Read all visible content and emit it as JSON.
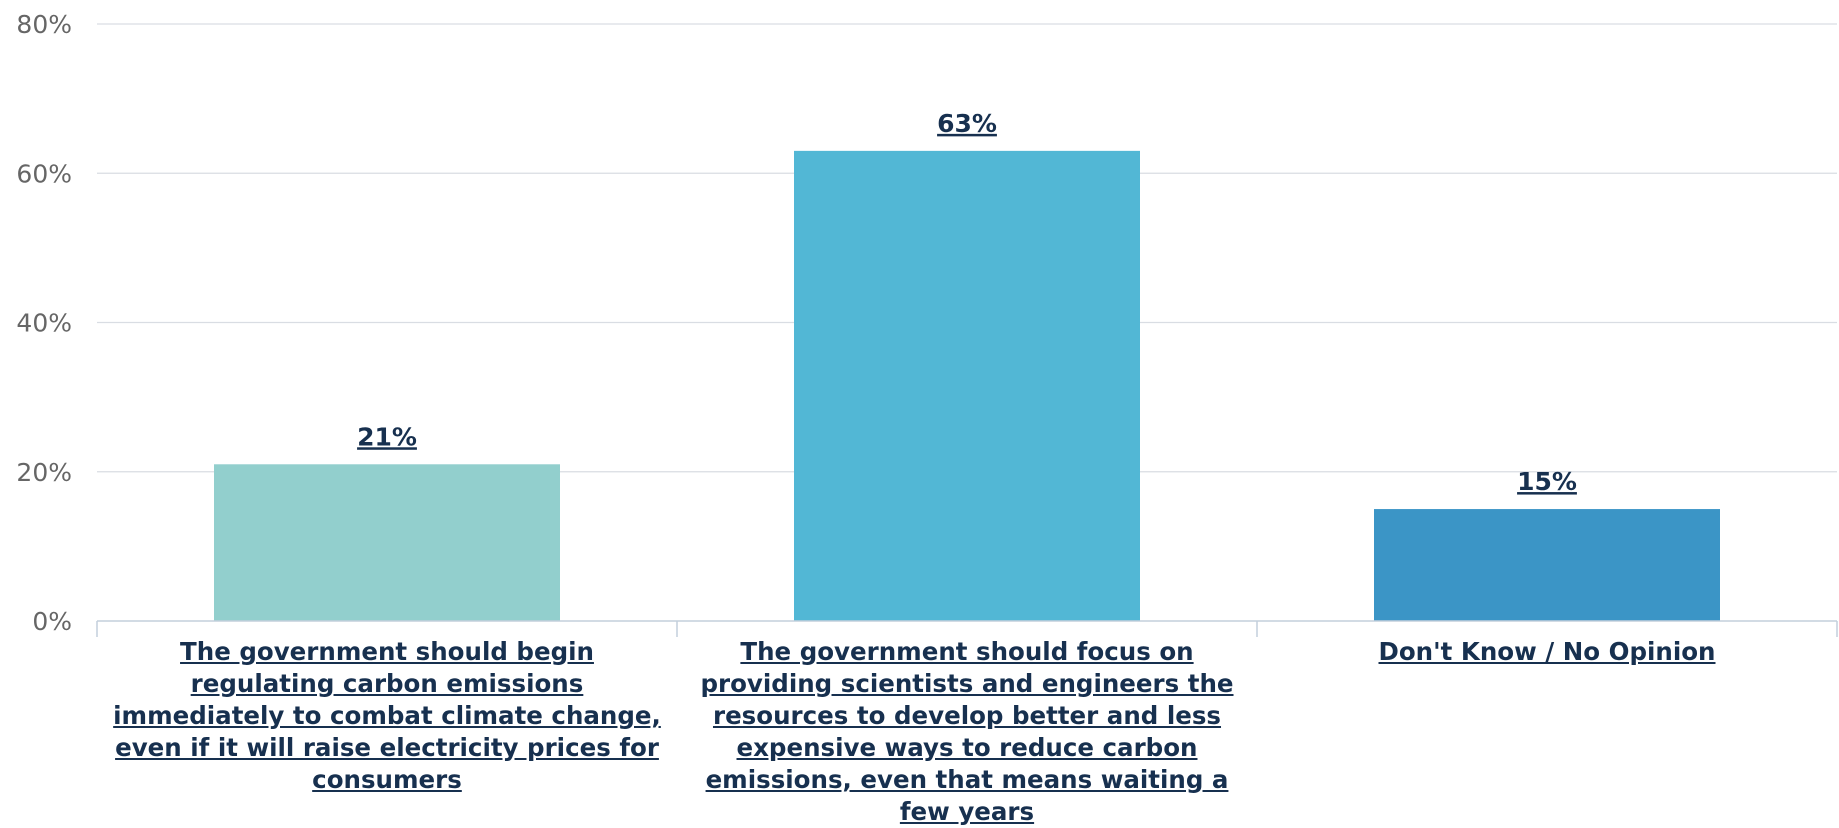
{
  "chart_data": {
    "type": "bar",
    "categories": [
      "The government should begin regulating carbon emissions immediately to combat climate change, even if it will raise electricity prices for consumers",
      "The government should focus on providing scientists and engineers the resources to develop better and less expensive ways to reduce carbon emissions, even that means waiting a few years",
      "Don't Know / No Opinion"
    ],
    "values": [
      21,
      63,
      15
    ],
    "value_labels": [
      "21%",
      "63%",
      "15%"
    ],
    "bar_colors": [
      "#92cfcd",
      "#52b7d5",
      "#3b95c6"
    ],
    "ylim": [
      0,
      80
    ],
    "yticks": [
      0,
      20,
      40,
      60,
      80
    ],
    "ytick_labels": [
      "0%",
      "20%",
      "40%",
      "60%",
      "80%"
    ],
    "grid": true,
    "title": "",
    "xlabel": "",
    "ylabel": ""
  }
}
